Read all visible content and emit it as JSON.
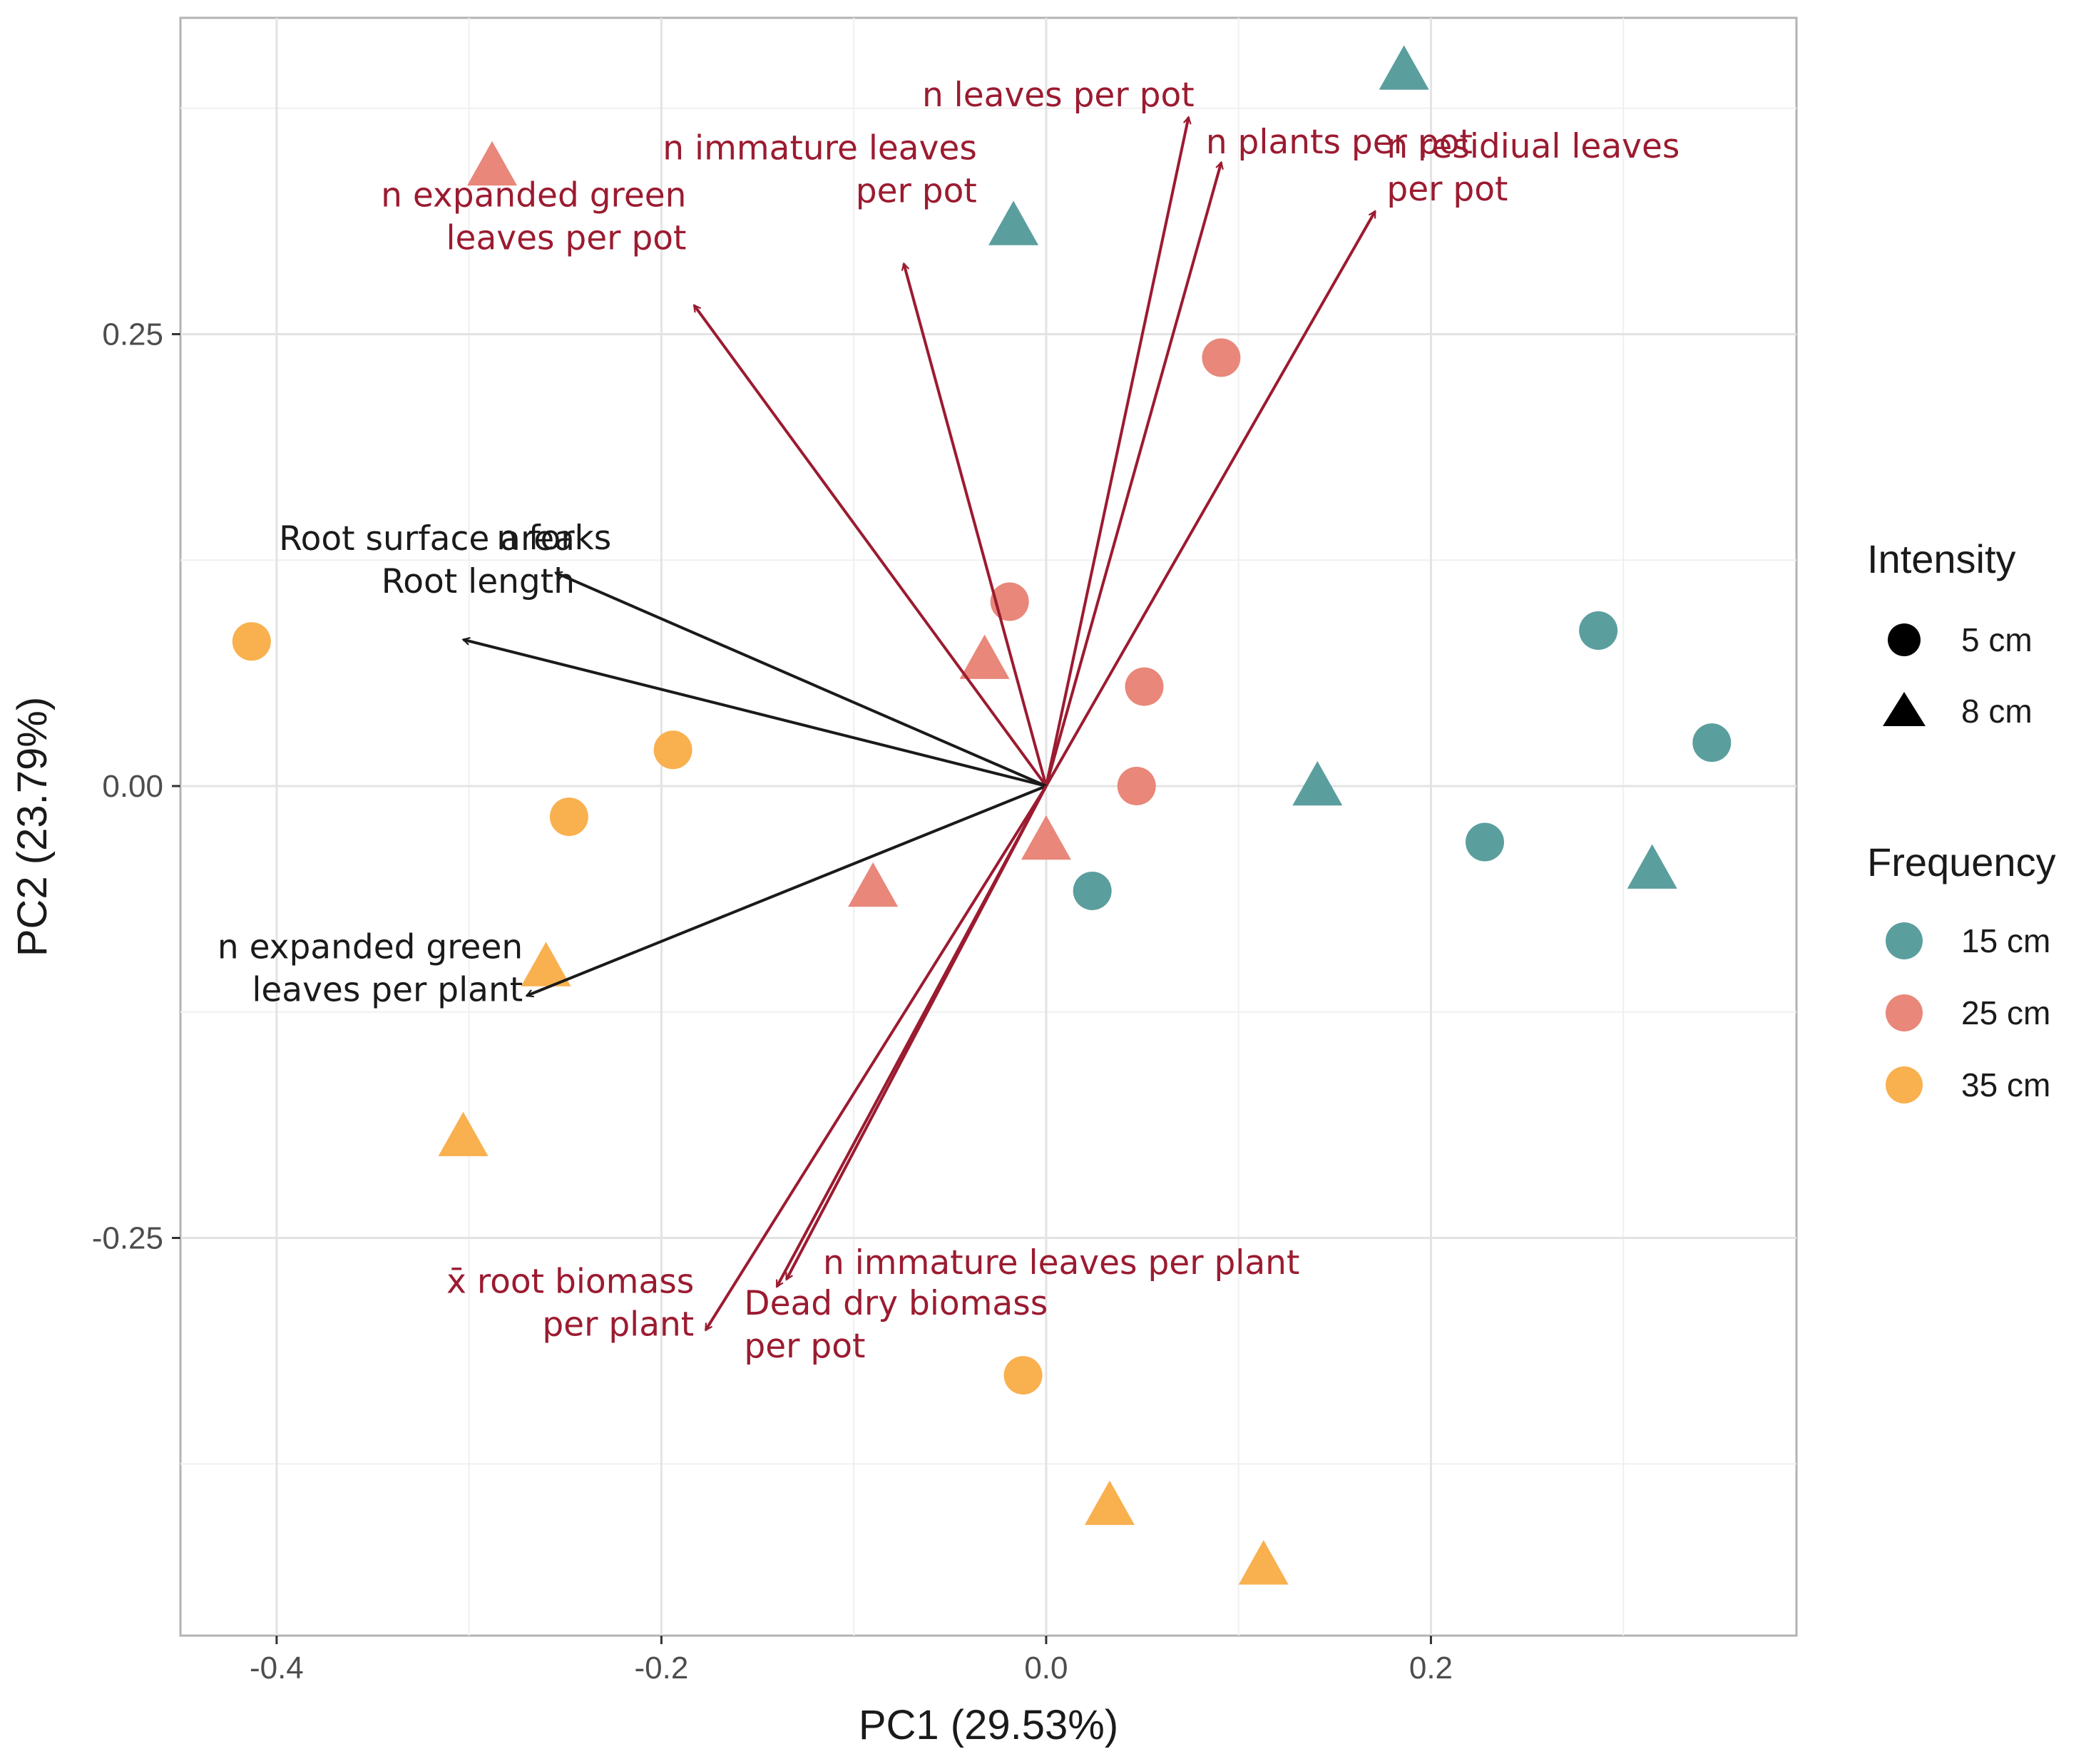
{
  "chart_data": {
    "type": "scatter",
    "subtype": "pca-biplot",
    "xlabel": "PC1 (29.53%)",
    "ylabel": "PC2 (23.79%)",
    "xlim": [
      -0.45,
      0.39
    ],
    "ylim": [
      -0.47,
      0.425
    ],
    "grid": true,
    "x_ticks": [
      {
        "value": -0.4,
        "label": "-0.4"
      },
      {
        "value": -0.2,
        "label": "-0.2"
      },
      {
        "value": 0.0,
        "label": "0.0"
      },
      {
        "value": 0.2,
        "label": "0.2"
      }
    ],
    "y_ticks": [
      {
        "value": 0.25,
        "label": "0.25"
      },
      {
        "value": 0.0,
        "label": "0.00"
      },
      {
        "value": -0.25,
        "label": "-0.25"
      }
    ],
    "legend": {
      "placement": "right",
      "intensity": {
        "title": "Intensity",
        "items": [
          {
            "label": "5 cm",
            "shape": "circle"
          },
          {
            "label": "8 cm",
            "shape": "triangle"
          }
        ]
      },
      "frequency": {
        "title": "Frequency",
        "items": [
          {
            "label": "15 cm",
            "color": "#5b9e9e"
          },
          {
            "label": "25 cm",
            "color": "#e8877a"
          },
          {
            "label": "35 cm",
            "color": "#f9b04f"
          }
        ]
      }
    },
    "colors": {
      "15 cm": "#5b9e9e",
      "25 cm": "#e8877a",
      "35 cm": "#f9b04f",
      "loading_red": "#9b1b30",
      "loading_black": "#1a1a1a"
    },
    "points": [
      {
        "x": -0.413,
        "y": 0.08,
        "intensity": "5 cm",
        "frequency": "35 cm"
      },
      {
        "x": -0.194,
        "y": 0.02,
        "intensity": "5 cm",
        "frequency": "35 cm"
      },
      {
        "x": -0.248,
        "y": -0.017,
        "intensity": "5 cm",
        "frequency": "35 cm"
      },
      {
        "x": -0.012,
        "y": -0.326,
        "intensity": "5 cm",
        "frequency": "35 cm"
      },
      {
        "x": -0.26,
        "y": -0.1,
        "intensity": "8 cm",
        "frequency": "35 cm"
      },
      {
        "x": -0.303,
        "y": -0.194,
        "intensity": "8 cm",
        "frequency": "35 cm"
      },
      {
        "x": 0.033,
        "y": -0.398,
        "intensity": "8 cm",
        "frequency": "35 cm"
      },
      {
        "x": 0.113,
        "y": -0.431,
        "intensity": "8 cm",
        "frequency": "35 cm"
      },
      {
        "x": 0.091,
        "y": 0.237,
        "intensity": "5 cm",
        "frequency": "25 cm"
      },
      {
        "x": -0.019,
        "y": 0.102,
        "intensity": "5 cm",
        "frequency": "25 cm"
      },
      {
        "x": 0.051,
        "y": 0.055,
        "intensity": "5 cm",
        "frequency": "25 cm"
      },
      {
        "x": 0.047,
        "y": 0.0,
        "intensity": "5 cm",
        "frequency": "25 cm"
      },
      {
        "x": -0.288,
        "y": 0.343,
        "intensity": "8 cm",
        "frequency": "25 cm"
      },
      {
        "x": -0.032,
        "y": 0.07,
        "intensity": "8 cm",
        "frequency": "25 cm"
      },
      {
        "x": -0.09,
        "y": -0.056,
        "intensity": "8 cm",
        "frequency": "25 cm"
      },
      {
        "x": 0.0,
        "y": -0.03,
        "intensity": "8 cm",
        "frequency": "25 cm"
      },
      {
        "x": 0.024,
        "y": -0.058,
        "intensity": "5 cm",
        "frequency": "15 cm"
      },
      {
        "x": 0.228,
        "y": -0.031,
        "intensity": "5 cm",
        "frequency": "15 cm"
      },
      {
        "x": 0.287,
        "y": 0.086,
        "intensity": "5 cm",
        "frequency": "15 cm"
      },
      {
        "x": 0.346,
        "y": 0.024,
        "intensity": "5 cm",
        "frequency": "15 cm"
      },
      {
        "x": 0.186,
        "y": 0.396,
        "intensity": "8 cm",
        "frequency": "15 cm"
      },
      {
        "x": -0.017,
        "y": 0.31,
        "intensity": "8 cm",
        "frequency": "15 cm"
      },
      {
        "x": 0.141,
        "y": 0.0,
        "intensity": "8 cm",
        "frequency": "15 cm"
      },
      {
        "x": 0.315,
        "y": -0.046,
        "intensity": "8 cm",
        "frequency": "15 cm"
      }
    ],
    "loadings": [
      {
        "name": "n leaves per pot",
        "lines": [
          "n leaves per pot"
        ],
        "x": 0.074,
        "y": 0.37,
        "color": "red",
        "anchor": "end",
        "dx": 0.003,
        "dy": 0.006
      },
      {
        "name": "n plants per pot",
        "lines": [
          "n plants per pot"
        ],
        "x": 0.091,
        "y": 0.345,
        "color": "red",
        "anchor": "start",
        "dx": -0.008,
        "dy": 0.005
      },
      {
        "name": "n residiual leaves per pot",
        "lines": [
          "n residiual leaves",
          "per pot"
        ],
        "x": 0.171,
        "y": 0.318,
        "color": "red",
        "anchor": "start",
        "dx": 0.006,
        "dy": 0.006
      },
      {
        "name": "n immature leaves per pot",
        "lines": [
          "n immature leaves",
          "per pot"
        ],
        "x": -0.074,
        "y": 0.289,
        "color": "red",
        "anchor": "end",
        "dx": 0.038,
        "dy": 0.034
      },
      {
        "name": "n expanded green leaves per pot",
        "lines": [
          "n expanded green",
          "leaves per pot"
        ],
        "x": -0.183,
        "y": 0.266,
        "color": "red",
        "anchor": "end",
        "dx": -0.004,
        "dy": 0.031
      },
      {
        "name": "n forks",
        "lines": [
          "n forks"
        ],
        "x": -0.255,
        "y": 0.118,
        "color": "black",
        "anchor": "end",
        "dx": 0.029,
        "dy": 0.013
      },
      {
        "name": "Root surface area / Root length",
        "lines": [
          "Root surface area",
          "Root length"
        ],
        "x": -0.303,
        "y": 0.081,
        "color": "black",
        "anchor": "end",
        "dx": 0.058,
        "dy": 0.026
      },
      {
        "name": "n expanded green leaves per plant",
        "lines": [
          "n expanded green",
          "leaves per plant"
        ],
        "x": -0.27,
        "y": -0.116,
        "color": "black",
        "anchor": "end",
        "dx": -0.002,
        "dy": -0.003
      },
      {
        "name": "n immature leaves per plant",
        "lines": [
          "n immature leaves per plant"
        ],
        "x": -0.135,
        "y": -0.273,
        "color": "red",
        "anchor": "start",
        "dx": 0.019,
        "dy": 0.003
      },
      {
        "name": "Dead dry biomass per pot",
        "lines": [
          "Dead dry biomass",
          "per pot"
        ],
        "x": -0.14,
        "y": -0.277,
        "color": "red",
        "anchor": "start",
        "dx": -0.017,
        "dy": -0.039
      },
      {
        "name": "x̄ root biomass per plant",
        "lines": [
          "x̄ root biomass",
          "per plant"
        ],
        "x": -0.177,
        "y": -0.301,
        "color": "red",
        "anchor": "end",
        "dx": -0.006,
        "dy": -0.003
      }
    ]
  }
}
